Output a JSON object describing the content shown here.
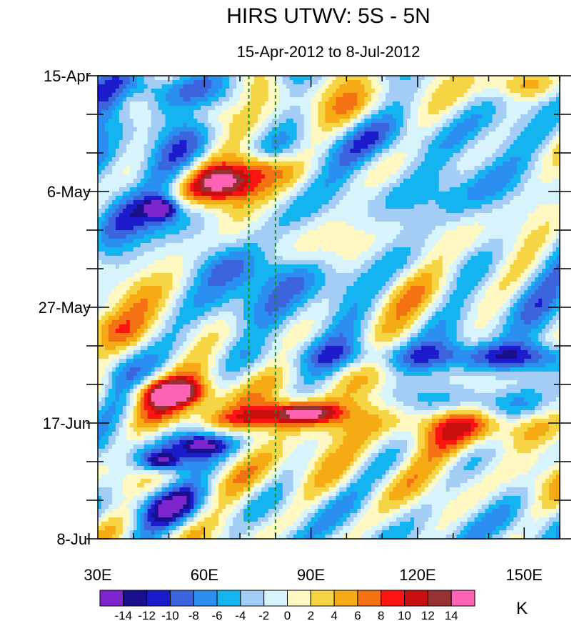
{
  "chart_data": {
    "type": "heatmap",
    "title": "HIRS UTWV: 5S - 5N",
    "subtitle": "15-Apr-2012 to 8-Jul-2012",
    "xlabel": "",
    "ylabel": "",
    "x_range": [
      30,
      160
    ],
    "y_range_days": [
      0,
      84
    ],
    "x_ticks": [
      {
        "value": 30,
        "label": "30E"
      },
      {
        "value": 60,
        "label": "60E"
      },
      {
        "value": 90,
        "label": "90E"
      },
      {
        "value": 120,
        "label": "120E"
      },
      {
        "value": 150,
        "label": "150E"
      }
    ],
    "y_ticks": [
      {
        "day": 0,
        "label": "15-Apr"
      },
      {
        "day": 21,
        "label": "6-May"
      },
      {
        "day": 42,
        "label": "27-May"
      },
      {
        "day": 63,
        "label": "17-Jun"
      },
      {
        "day": 84,
        "label": "8-Jul"
      }
    ],
    "reference_lines_lon": [
      72.5,
      80
    ],
    "reference_line_color": "#1a8a1a",
    "units": "K",
    "colorbar": {
      "levels": [
        -14,
        -12,
        -10,
        -8,
        -6,
        -4,
        -2,
        0,
        2,
        4,
        6,
        8,
        10,
        12,
        14
      ],
      "level_labels": [
        "-14",
        "-12",
        "-10",
        "-8",
        "-6",
        "-4",
        "-2",
        "0",
        "2",
        "4",
        "6",
        "8",
        "10",
        "12",
        "14"
      ],
      "colors": [
        "#7d26cd",
        "#1a0f8c",
        "#1c1ccc",
        "#3c64dc",
        "#2a8ff0",
        "#14b4f0",
        "#a3cdf5",
        "#d7f3fb",
        "#fff8c3",
        "#f6d544",
        "#f6aa14",
        "#f57214",
        "#ff1414",
        "#c80f0f",
        "#963232",
        "#ff64b4"
      ]
    },
    "features": [
      {
        "lon": 68,
        "day": 19,
        "value": 9,
        "slon": 6,
        "sday": 2.0
      },
      {
        "lon": 76,
        "day": 16.5,
        "value": 8,
        "slon": 5,
        "sday": 1.8
      },
      {
        "lon": 62,
        "day": 20.5,
        "value": 6,
        "slon": 9,
        "sday": 2.4
      },
      {
        "lon": 68,
        "day": 24,
        "value": 4,
        "slon": 6,
        "sday": 4
      },
      {
        "lon": 50,
        "day": 57.5,
        "value": 10,
        "slon": 7,
        "sday": 1.6
      },
      {
        "lon": 50,
        "day": 58,
        "value": 5,
        "slon": 16,
        "sday": 3.8
      },
      {
        "lon": 88,
        "day": 61,
        "value": 12,
        "slon": 6,
        "sday": 1.2
      },
      {
        "lon": 85,
        "day": 61.5,
        "value": 7,
        "slon": 14,
        "sday": 2.2
      },
      {
        "lon": 72,
        "day": 62.5,
        "value": 6,
        "slon": 10,
        "sday": 1.3
      },
      {
        "lon": 35,
        "day": 46,
        "value": 6,
        "slon": 6,
        "sday": 3
      },
      {
        "lon": 40,
        "day": 40,
        "value": 5,
        "slon": 8,
        "sday": 3
      },
      {
        "lon": 135,
        "day": 64,
        "value": 5,
        "slon": 20,
        "sday": 2.5
      },
      {
        "lon": 125,
        "day": 62,
        "value": 4,
        "slon": 14,
        "sday": 2
      },
      {
        "lon": 155,
        "day": 72,
        "value": 4,
        "slon": 8,
        "sday": 3
      },
      {
        "lon": 110,
        "day": 74,
        "value": 3,
        "slon": 20,
        "sday": 3
      },
      {
        "lon": 75,
        "day": 72,
        "value": 2,
        "slon": 20,
        "sday": 4
      },
      {
        "lon": 60,
        "day": 7,
        "value": 4,
        "slon": 5,
        "sday": 2
      },
      {
        "lon": 40,
        "day": 5,
        "value": 4,
        "slon": 4,
        "sday": 2
      },
      {
        "lon": 77,
        "day": 2,
        "value": 3,
        "slon": 4,
        "sday": 2
      },
      {
        "lon": 105,
        "day": 6,
        "value": 3,
        "slon": 10,
        "sday": 3
      },
      {
        "lon": 150,
        "day": 2,
        "value": 4,
        "slon": 7,
        "sday": 1.5
      },
      {
        "lon": 100,
        "day": 44,
        "value": 2,
        "slon": 10,
        "sday": 4
      },
      {
        "lon": 140,
        "day": 30,
        "value": 2,
        "slon": 12,
        "sday": 3
      },
      {
        "lon": 112,
        "day": 38,
        "value": 2,
        "slon": 10,
        "sday": 3
      },
      {
        "lon": 48,
        "day": 24,
        "value": -11,
        "slon": 3,
        "sday": 1.2
      },
      {
        "lon": 48,
        "day": 25,
        "value": -7,
        "slon": 9,
        "sday": 3
      },
      {
        "lon": 48,
        "day": 70,
        "value": -11,
        "slon": 4,
        "sday": 1.2
      },
      {
        "lon": 60,
        "day": 67,
        "value": -10,
        "slon": 5,
        "sday": 1.2
      },
      {
        "lon": 52,
        "day": 68.5,
        "value": -7,
        "slon": 12,
        "sday": 2.5
      },
      {
        "lon": 50,
        "day": 78,
        "value": -8,
        "slon": 10,
        "sday": 2.5
      },
      {
        "lon": 48,
        "day": 3,
        "value": -7,
        "slon": 12,
        "sday": 3
      },
      {
        "lon": 44,
        "day": 10,
        "value": -6,
        "slon": 10,
        "sday": 4
      },
      {
        "lon": 65,
        "day": 34,
        "value": -6,
        "slon": 10,
        "sday": 3
      },
      {
        "lon": 80,
        "day": 43,
        "value": -6,
        "slon": 14,
        "sday": 3
      },
      {
        "lon": 90,
        "day": 38,
        "value": -6,
        "slon": 10,
        "sday": 3
      },
      {
        "lon": 120,
        "day": 51,
        "value": -7,
        "slon": 25,
        "sday": 2
      },
      {
        "lon": 150,
        "day": 51,
        "value": -8,
        "slon": 12,
        "sday": 2
      },
      {
        "lon": 140,
        "day": 60,
        "value": -6,
        "slon": 12,
        "sday": 2
      },
      {
        "lon": 33,
        "day": 22,
        "value": -6,
        "slon": 5,
        "sday": 8
      },
      {
        "lon": 36,
        "day": 54,
        "value": -5,
        "slon": 5,
        "sday": 5
      },
      {
        "lon": 100,
        "day": 80,
        "value": -4,
        "slon": 15,
        "sday": 4
      },
      {
        "lon": 150,
        "day": 80,
        "value": -4,
        "slon": 10,
        "sday": 4
      },
      {
        "lon": 130,
        "day": 22,
        "value": -3,
        "slon": 25,
        "sday": 6
      },
      {
        "lon": 115,
        "day": 12,
        "value": -4,
        "slon": 12,
        "sday": 3
      },
      {
        "lon": 150,
        "day": 40,
        "value": -4,
        "slon": 10,
        "sday": 4
      },
      {
        "lon": 92,
        "day": 14,
        "value": -3,
        "slon": 8,
        "sday": 3
      },
      {
        "lon": 140,
        "day": 10,
        "value": -2,
        "slon": 12,
        "sday": 4
      }
    ]
  }
}
